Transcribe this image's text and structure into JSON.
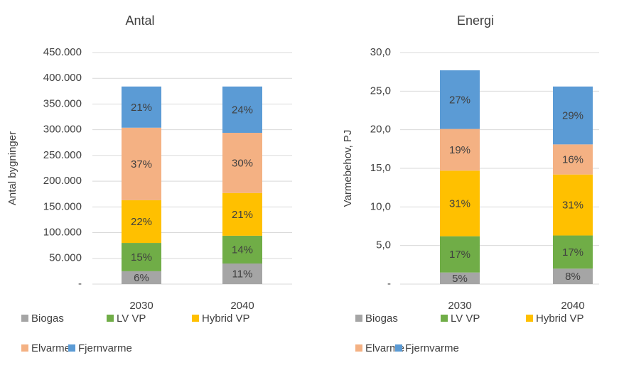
{
  "chart_data": [
    {
      "type": "bar",
      "stacked": true,
      "title": "Antal",
      "y_label": "Antal bygninger",
      "categories": [
        "2030",
        "2040"
      ],
      "series": [
        {
          "name": "Biogas",
          "color": "#a5a5a5",
          "values": [
            25000,
            40000
          ],
          "share_labels": [
            "6%",
            "11%"
          ]
        },
        {
          "name": "LV VP",
          "color": "#70ad47",
          "values": [
            55000,
            54000
          ],
          "share_labels": [
            "15%",
            "14%"
          ]
        },
        {
          "name": "Hybrid VP",
          "color": "#ffc000",
          "values": [
            83000,
            83000
          ],
          "share_labels": [
            "22%",
            "21%"
          ]
        },
        {
          "name": "Elvarme",
          "color": "#f4b183",
          "values": [
            141000,
            117000
          ],
          "share_labels": [
            "37%",
            "30%"
          ]
        },
        {
          "name": "Fjernvarme",
          "color": "#5b9bd5",
          "values": [
            80000,
            90000
          ],
          "share_labels": [
            "21%",
            "24%"
          ]
        }
      ],
      "ylim": [
        0,
        450000
      ],
      "yticks": [
        {
          "value": 0,
          "label": "-"
        },
        {
          "value": 50000,
          "label": "50.000"
        },
        {
          "value": 100000,
          "label": "100.000"
        },
        {
          "value": 150000,
          "label": "150.000"
        },
        {
          "value": 200000,
          "label": "200.000"
        },
        {
          "value": 250000,
          "label": "250.000"
        },
        {
          "value": 300000,
          "label": "300.000"
        },
        {
          "value": 350000,
          "label": "350.000"
        },
        {
          "value": 400000,
          "label": "400.000"
        },
        {
          "value": 450000,
          "label": "450.000"
        }
      ],
      "grid": true
    },
    {
      "type": "bar",
      "stacked": true,
      "title": "Energi",
      "y_label": "Varmebehov, PJ",
      "categories": [
        "2030",
        "2040"
      ],
      "series": [
        {
          "name": "Biogas",
          "color": "#a5a5a5",
          "values": [
            1.5,
            2.0
          ],
          "share_labels": [
            "5%",
            "8%"
          ]
        },
        {
          "name": "LV VP",
          "color": "#70ad47",
          "values": [
            4.7,
            4.3
          ],
          "share_labels": [
            "17%",
            "17%"
          ]
        },
        {
          "name": "Hybrid VP",
          "color": "#ffc000",
          "values": [
            8.5,
            7.9
          ],
          "share_labels": [
            "31%",
            "31%"
          ]
        },
        {
          "name": "Elvarme",
          "color": "#f4b183",
          "values": [
            5.4,
            3.9
          ],
          "share_labels": [
            "19%",
            "16%"
          ]
        },
        {
          "name": "Fjernvarme",
          "color": "#5b9bd5",
          "values": [
            7.6,
            7.5
          ],
          "share_labels": [
            "27%",
            "29%"
          ]
        }
      ],
      "ylim": [
        0,
        30
      ],
      "yticks": [
        {
          "value": 0,
          "label": "-"
        },
        {
          "value": 5,
          "label": "5,0"
        },
        {
          "value": 10,
          "label": "10,0"
        },
        {
          "value": 15,
          "label": "15,0"
        },
        {
          "value": 20,
          "label": "20,0"
        },
        {
          "value": 25,
          "label": "25,0"
        },
        {
          "value": 30,
          "label": "30,0"
        }
      ],
      "grid": true
    }
  ]
}
